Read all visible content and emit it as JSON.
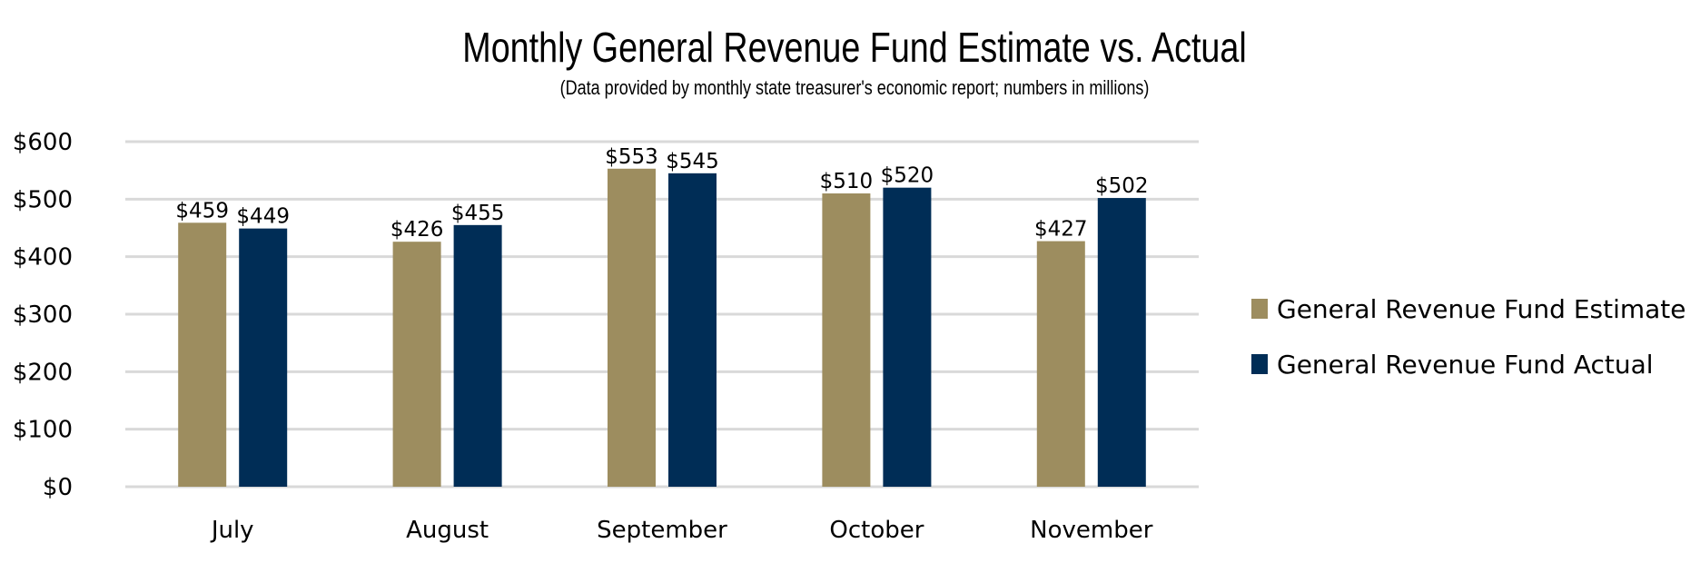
{
  "chart_data": {
    "type": "bar",
    "title": "Monthly General Revenue Fund Estimate vs. Actual",
    "subtitle": "(Data provided by monthly state treasurer's economic report; numbers in millions)",
    "categories": [
      "July",
      "August",
      "September",
      "October",
      "November"
    ],
    "series": [
      {
        "name": "General Revenue Fund Estimate",
        "color": "#9d8d5f",
        "values": [
          459,
          426,
          553,
          510,
          427
        ],
        "labels": [
          "$459",
          "$426",
          "$553",
          "$510",
          "$427"
        ]
      },
      {
        "name": "General Revenue Fund Actual",
        "color": "#002d56",
        "values": [
          449,
          455,
          545,
          520,
          502
        ],
        "labels": [
          "$449",
          "$455",
          "$545",
          "$520",
          "$502"
        ]
      }
    ],
    "ylim": [
      0,
      600
    ],
    "yticks": [
      0,
      100,
      200,
      300,
      400,
      500,
      600
    ],
    "ytick_labels": [
      "$0",
      "$100",
      "$200",
      "$300",
      "$400",
      "$500",
      "$600"
    ],
    "xlabel": "",
    "ylabel": "",
    "grid": true,
    "gridline_color": "#d9d9d9",
    "legend_position": "right"
  }
}
